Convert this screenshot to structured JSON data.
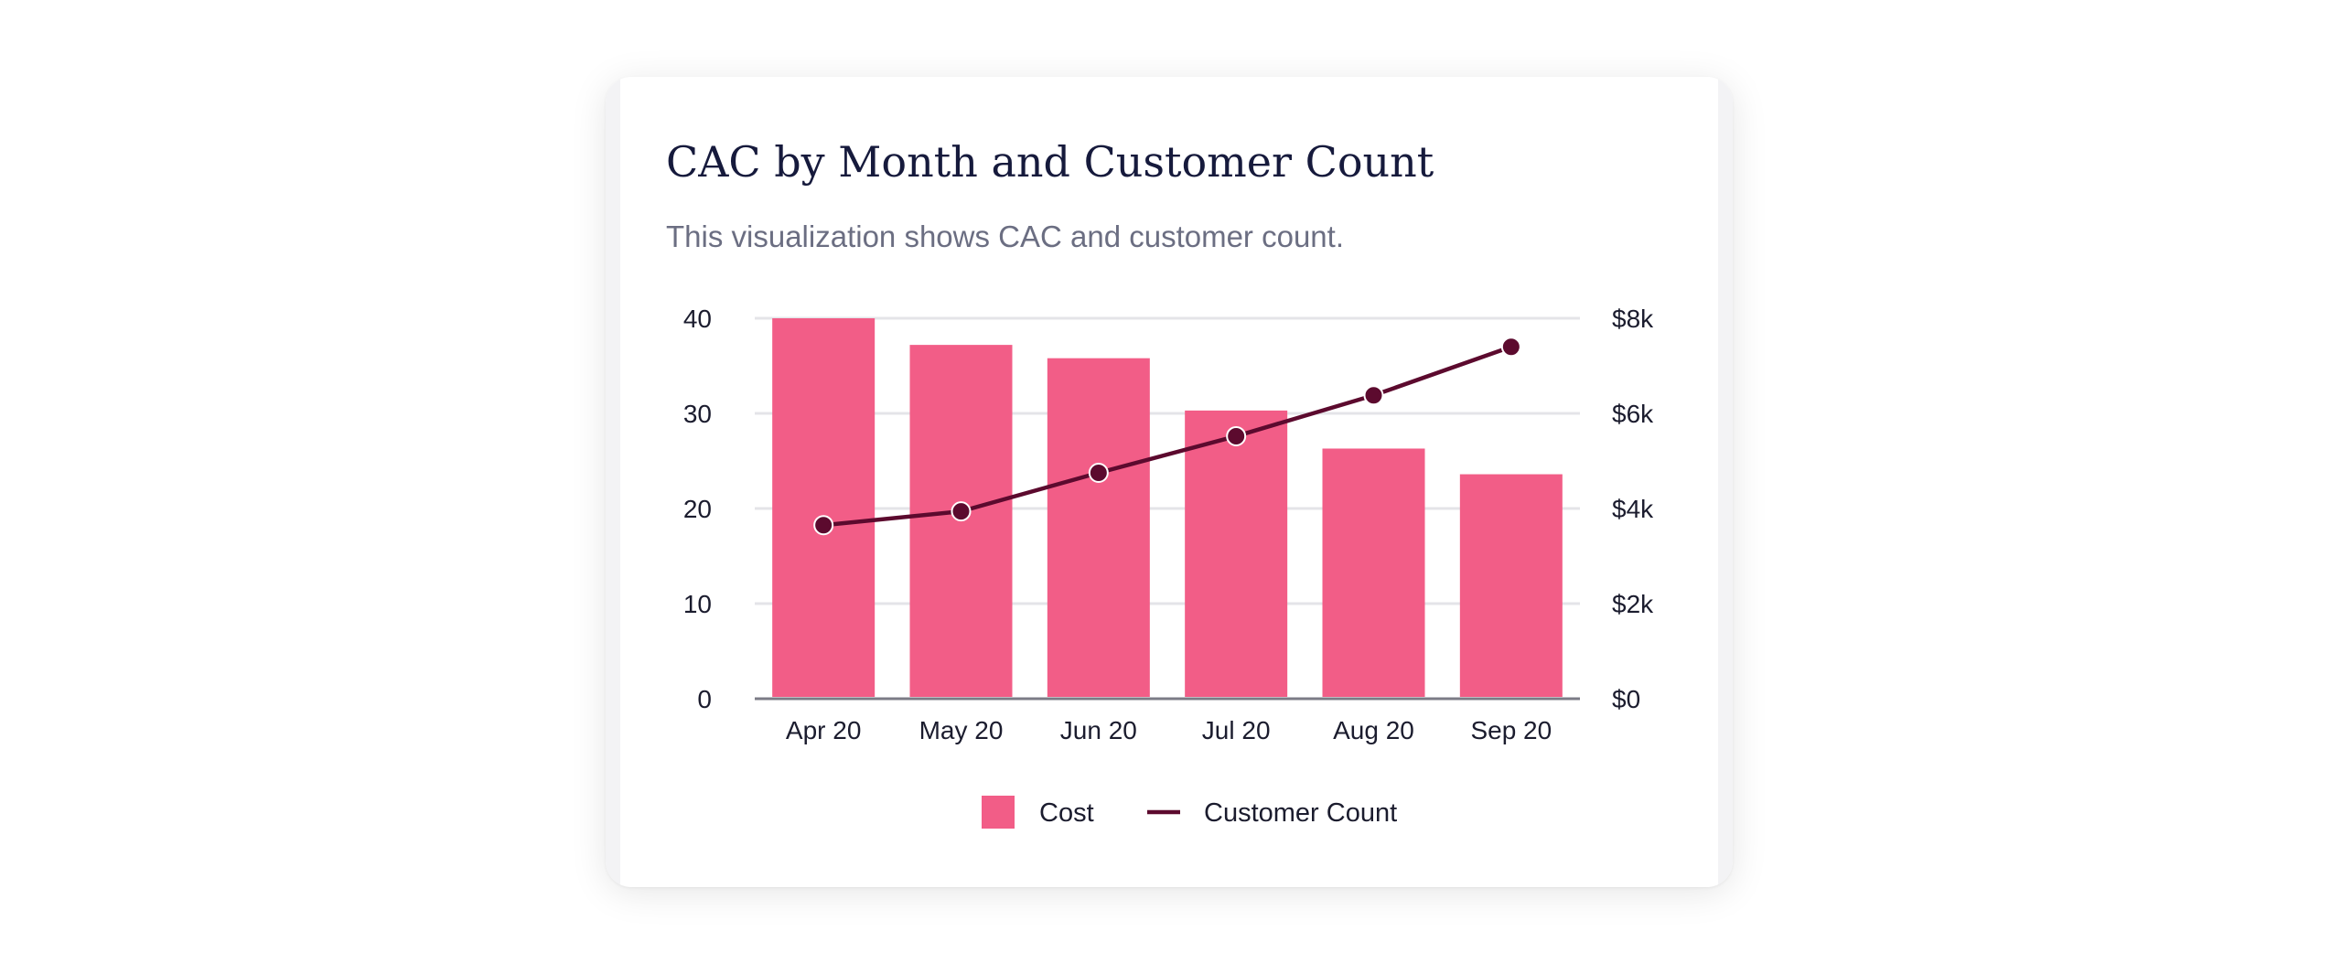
{
  "card": {
    "title": "CAC by Month and Customer Count",
    "subtitle": "This visualization shows CAC and customer count."
  },
  "colors": {
    "bar": "#f25d87",
    "line": "#5c0a2e",
    "grid": "#e4e4e8",
    "axis": "#7b7b86"
  },
  "chart_data": {
    "type": "bar",
    "categories": [
      "Apr 20",
      "May 20",
      "Jun 20",
      "Jul 20",
      "Aug 20",
      "Sep 20"
    ],
    "series": [
      {
        "name": "Cost",
        "kind": "bar",
        "axis": "left",
        "values": [
          40,
          37.2,
          35.8,
          30.3,
          26.3,
          23.6
        ]
      },
      {
        "name": "Customer Count",
        "kind": "line",
        "axis": "right",
        "values": [
          3650,
          3940,
          4750,
          5520,
          6380,
          7400
        ]
      }
    ],
    "left_axis": {
      "ylim": [
        0,
        40
      ],
      "ticks": [
        0,
        10,
        20,
        30,
        40
      ],
      "tick_labels": [
        "0",
        "10",
        "20",
        "30",
        "40"
      ]
    },
    "right_axis": {
      "ylim": [
        0,
        8000
      ],
      "ticks": [
        0,
        2000,
        4000,
        6000,
        8000
      ],
      "tick_labels": [
        "$0",
        "$2k",
        "$4k",
        "$6k",
        "$8k"
      ]
    },
    "legend": {
      "position": "bottom-center",
      "entries": [
        "Cost",
        "Customer Count"
      ]
    },
    "grid": true
  }
}
